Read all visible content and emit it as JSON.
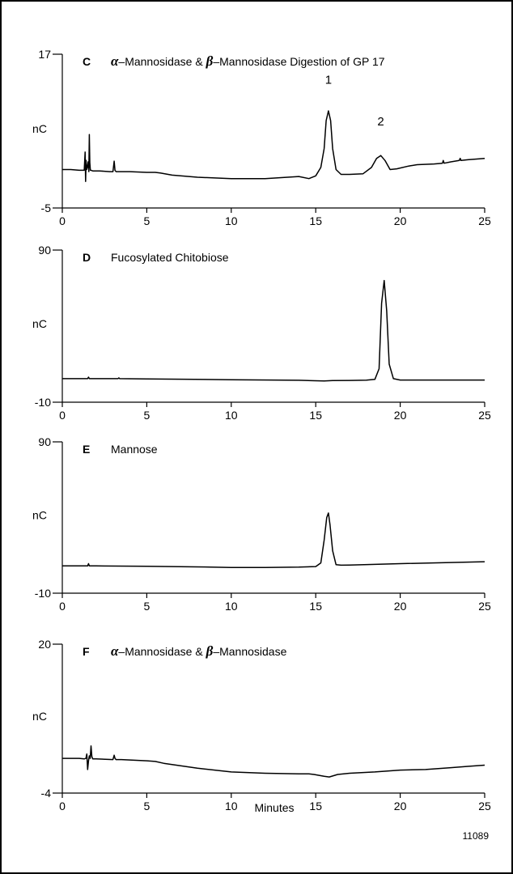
{
  "figure_id": "11089",
  "x_axis_title": "Minutes",
  "chart_data": [
    {
      "type": "line",
      "panel": "C",
      "title_parts": [
        {
          "text": "α",
          "greek": true
        },
        {
          "text": "–Mannosidase & ",
          "greek": false
        },
        {
          "text": "β",
          "greek": true
        },
        {
          "text": "–Mannosidase  Digestion of GP 17",
          "greek": false
        }
      ],
      "ylabel": "nC",
      "xlim": [
        0,
        25
      ],
      "ylim": [
        -5,
        17
      ],
      "y_ticks": [
        17,
        -5
      ],
      "x_ticks": [
        0,
        5,
        10,
        15,
        20,
        25
      ],
      "annotations": [
        {
          "text": "1",
          "x": 15.75,
          "y": 12.8
        },
        {
          "text": "2",
          "x": 18.85,
          "y": 6.8
        }
      ],
      "series": [
        {
          "x": [
            0,
            0.5,
            1.0,
            1.3,
            1.35,
            1.38,
            1.41,
            1.44,
            1.48,
            1.53,
            1.57,
            1.6,
            1.63,
            1.66,
            1.7,
            1.8,
            2.2,
            2.8,
            3.0,
            3.07,
            3.12,
            3.18,
            3.3,
            4.0,
            5.0,
            5.5,
            5.8,
            6.5,
            8.0,
            10.0,
            12.0,
            14.0,
            14.6,
            15.0,
            15.3,
            15.5,
            15.62,
            15.75,
            15.88,
            16.0,
            16.2,
            16.5,
            17.0,
            17.8,
            18.3,
            18.6,
            18.85,
            19.1,
            19.4,
            19.8,
            20.5,
            21.0,
            22.0,
            22.5,
            22.55,
            22.6,
            23.0,
            23.5,
            23.55,
            23.6,
            24.0,
            25.0
          ],
          "y": [
            0.5,
            0.5,
            0.4,
            0.4,
            3.0,
            -1.2,
            1.8,
            0.5,
            0.8,
            1.6,
            0.2,
            5.5,
            1.5,
            0.4,
            0.4,
            0.3,
            0.3,
            0.2,
            0.2,
            1.7,
            0.4,
            0.2,
            0.2,
            0.2,
            0.1,
            0.1,
            0.0,
            -0.3,
            -0.6,
            -0.8,
            -0.8,
            -0.5,
            -0.8,
            -0.4,
            0.8,
            3.5,
            7.5,
            8.9,
            7.5,
            3.5,
            0.5,
            -0.2,
            -0.2,
            -0.1,
            0.8,
            2.1,
            2.5,
            1.8,
            0.5,
            0.6,
            1.0,
            1.2,
            1.3,
            1.4,
            1.8,
            1.4,
            1.6,
            1.8,
            2.1,
            1.8,
            1.9,
            2.1
          ]
        }
      ]
    },
    {
      "type": "line",
      "panel": "D",
      "title_parts": [
        {
          "text": "Fucosylated Chitobiose",
          "greek": false
        }
      ],
      "ylabel": "nC",
      "xlim": [
        0,
        25
      ],
      "ylim": [
        -10,
        90
      ],
      "y_ticks": [
        90,
        -10
      ],
      "x_ticks": [
        0,
        5,
        10,
        15,
        20,
        25
      ],
      "annotations": [],
      "series": [
        {
          "x": [
            0,
            1.0,
            1.5,
            1.55,
            1.6,
            2.0,
            3.3,
            3.35,
            3.4,
            5.0,
            10.0,
            14.0,
            15.0,
            15.5,
            16.0,
            17.0,
            18.0,
            18.5,
            18.75,
            18.9,
            19.05,
            19.2,
            19.35,
            19.6,
            20.0,
            22.0,
            25.0
          ],
          "y": [
            5.5,
            5.5,
            5.5,
            6.5,
            5.5,
            5.5,
            5.5,
            6.0,
            5.5,
            5.3,
            4.8,
            4.4,
            4.1,
            4.0,
            4.2,
            4.3,
            4.5,
            5.0,
            12.0,
            55.0,
            70.0,
            50.0,
            15.0,
            5.5,
            4.6,
            4.6,
            4.6
          ]
        }
      ]
    },
    {
      "type": "line",
      "panel": "E",
      "title_parts": [
        {
          "text": "Mannose",
          "greek": false
        }
      ],
      "ylabel": "nC",
      "xlim": [
        0,
        25
      ],
      "ylim": [
        -10,
        90
      ],
      "y_ticks": [
        90,
        -10
      ],
      "x_ticks": [
        0,
        5,
        10,
        15,
        20,
        25
      ],
      "annotations": [],
      "series": [
        {
          "x": [
            0,
            1.0,
            1.5,
            1.55,
            1.6,
            2.0,
            5.0,
            8.0,
            10.0,
            12.0,
            14.0,
            15.0,
            15.3,
            15.5,
            15.65,
            15.75,
            15.85,
            16.0,
            16.2,
            16.5,
            17.0,
            20.0,
            25.0
          ],
          "y": [
            8.0,
            8.0,
            8.0,
            9.5,
            8.0,
            8.0,
            7.8,
            7.4,
            7.0,
            7.0,
            7.2,
            7.6,
            10.0,
            25.0,
            40.0,
            43.0,
            35.0,
            18.0,
            8.8,
            8.5,
            8.6,
            9.5,
            10.8
          ]
        }
      ]
    },
    {
      "type": "line",
      "panel": "F",
      "title_parts": [
        {
          "text": "α",
          "greek": true
        },
        {
          "text": "–Mannosidase & ",
          "greek": false
        },
        {
          "text": "β",
          "greek": true
        },
        {
          "text": "–Mannosidase",
          "greek": false
        }
      ],
      "ylabel": "nC",
      "xlim": [
        0,
        25
      ],
      "ylim": [
        -4,
        20
      ],
      "y_ticks": [
        20,
        -4
      ],
      "x_ticks": [
        0,
        5,
        10,
        15,
        20,
        25
      ],
      "annotations": [],
      "series": [
        {
          "x": [
            0,
            1.0,
            1.3,
            1.4,
            1.45,
            1.5,
            1.55,
            1.6,
            1.65,
            1.7,
            1.75,
            1.8,
            2.0,
            3.0,
            3.07,
            3.12,
            3.18,
            3.5,
            5.0,
            5.5,
            6.0,
            8.0,
            10.0,
            12.0,
            14.0,
            14.6,
            14.9,
            15.5,
            15.8,
            16.3,
            17.0,
            18.5,
            20.0,
            21.5,
            23.0,
            24.0,
            25.0
          ],
          "y": [
            1.6,
            1.6,
            1.5,
            1.6,
            2.3,
            -0.2,
            1.2,
            2.0,
            1.6,
            3.6,
            1.9,
            1.5,
            1.5,
            1.4,
            2.1,
            1.6,
            1.4,
            1.4,
            1.2,
            1.1,
            0.8,
            0.0,
            -0.6,
            -0.8,
            -0.9,
            -0.9,
            -1.0,
            -1.3,
            -1.4,
            -1.0,
            -0.8,
            -0.6,
            -0.3,
            -0.2,
            0.1,
            0.3,
            0.5
          ]
        }
      ]
    }
  ]
}
